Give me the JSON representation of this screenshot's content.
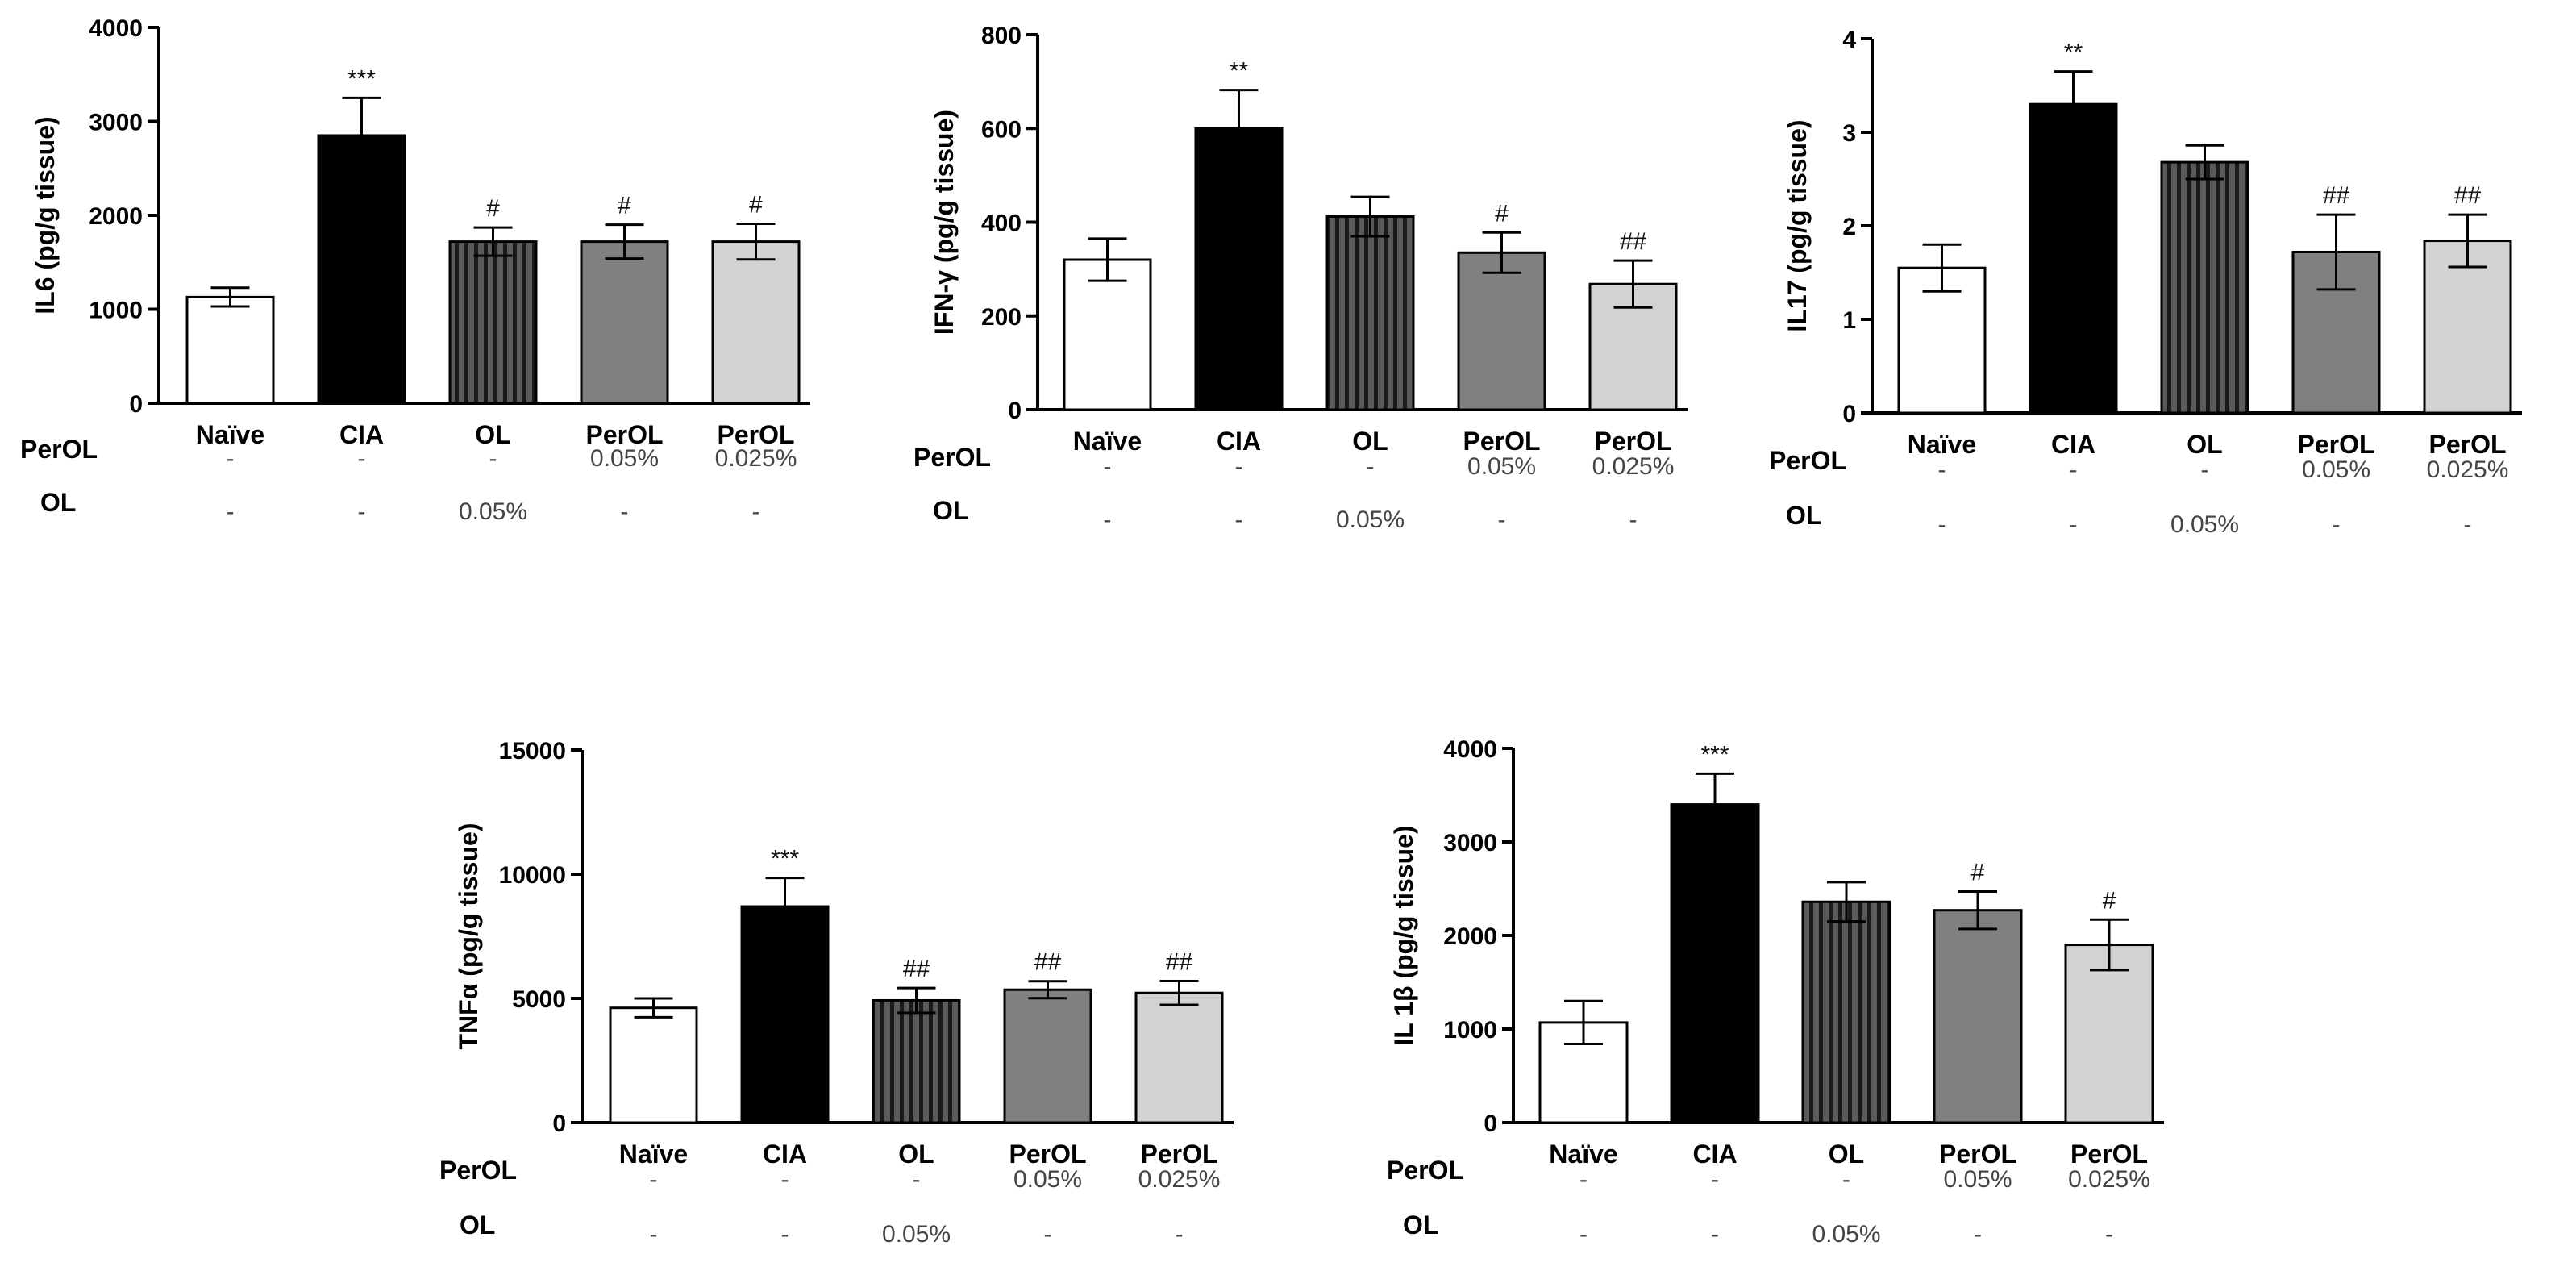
{
  "colors": {
    "naive": "#ffffff",
    "cia": "#000000",
    "ol_fill": "#555555",
    "ol_stripe": "#1a1a1a",
    "perol_005": "#808080",
    "perol_0025": "#d3d3d3",
    "axis": "#000000"
  },
  "treatment_rows": {
    "perol_label": "PerOL",
    "ol_label": "OL",
    "perol_cells": [
      "-",
      "-",
      "-",
      "0.05%",
      "0.025%"
    ],
    "ol_cells": [
      "-",
      "-",
      "0.05%",
      "-",
      "-"
    ]
  },
  "chart_data": [
    {
      "type": "bar",
      "ylabel": "IL6 (pg/g tissue)",
      "ylim": [
        0,
        4000
      ],
      "yticks": [
        "0",
        "1000",
        "2000",
        "3000",
        "4000"
      ],
      "categories": [
        "Naïve",
        "CIA",
        "OL",
        "PerOL",
        "PerOL"
      ],
      "values": [
        1130,
        2850,
        1720,
        1720,
        1720
      ],
      "errors": [
        100,
        400,
        150,
        180,
        190
      ],
      "significance": [
        "",
        "***",
        "#",
        "#",
        "#"
      ]
    },
    {
      "type": "bar",
      "ylabel": "IFN-γ (pg/g tissue)",
      "ylim": [
        0,
        800
      ],
      "yticks": [
        "0",
        "200",
        "400",
        "600",
        "800"
      ],
      "categories": [
        "Naïve",
        "CIA",
        "OL",
        "PerOL",
        "PerOL"
      ],
      "values": [
        320,
        600,
        412,
        335,
        268
      ],
      "errors": [
        45,
        82,
        42,
        43,
        50
      ],
      "significance": [
        "",
        "**",
        "",
        "#",
        "##"
      ]
    },
    {
      "type": "bar",
      "ylabel": "IL17 (pg/g tissue)",
      "ylim": [
        0,
        4
      ],
      "yticks": [
        "0",
        "1",
        "2",
        "3",
        "4"
      ],
      "categories": [
        "Naïve",
        "CIA",
        "OL",
        "PerOL",
        "PerOL"
      ],
      "values": [
        1.55,
        3.3,
        2.68,
        1.72,
        1.84
      ],
      "errors": [
        0.25,
        0.35,
        0.18,
        0.4,
        0.28
      ],
      "significance": [
        "",
        "**",
        "",
        "##",
        "##"
      ]
    },
    {
      "type": "bar",
      "ylabel": "TNFα (pg/g tissue)",
      "ylim": [
        0,
        15000
      ],
      "yticks": [
        "0",
        "5000",
        "10000",
        "15000"
      ],
      "categories": [
        "Naïve",
        "CIA",
        "OL",
        "PerOL",
        "PerOL"
      ],
      "values": [
        4620,
        8700,
        4920,
        5350,
        5220
      ],
      "errors": [
        380,
        1150,
        500,
        340,
        480
      ],
      "significance": [
        "",
        "***",
        "##",
        "##",
        "##"
      ]
    },
    {
      "type": "bar",
      "ylabel": "IL 1β (pg/g tissue)",
      "ylim": [
        0,
        4000
      ],
      "yticks": [
        "0",
        "1000",
        "2000",
        "3000",
        "4000"
      ],
      "categories": [
        "Naïve",
        "CIA",
        "OL",
        "PerOL",
        "PerOL"
      ],
      "values": [
        1070,
        3400,
        2360,
        2270,
        1900
      ],
      "errors": [
        230,
        330,
        210,
        200,
        270
      ],
      "significance": [
        "",
        "***",
        "",
        "#",
        "#"
      ]
    }
  ]
}
